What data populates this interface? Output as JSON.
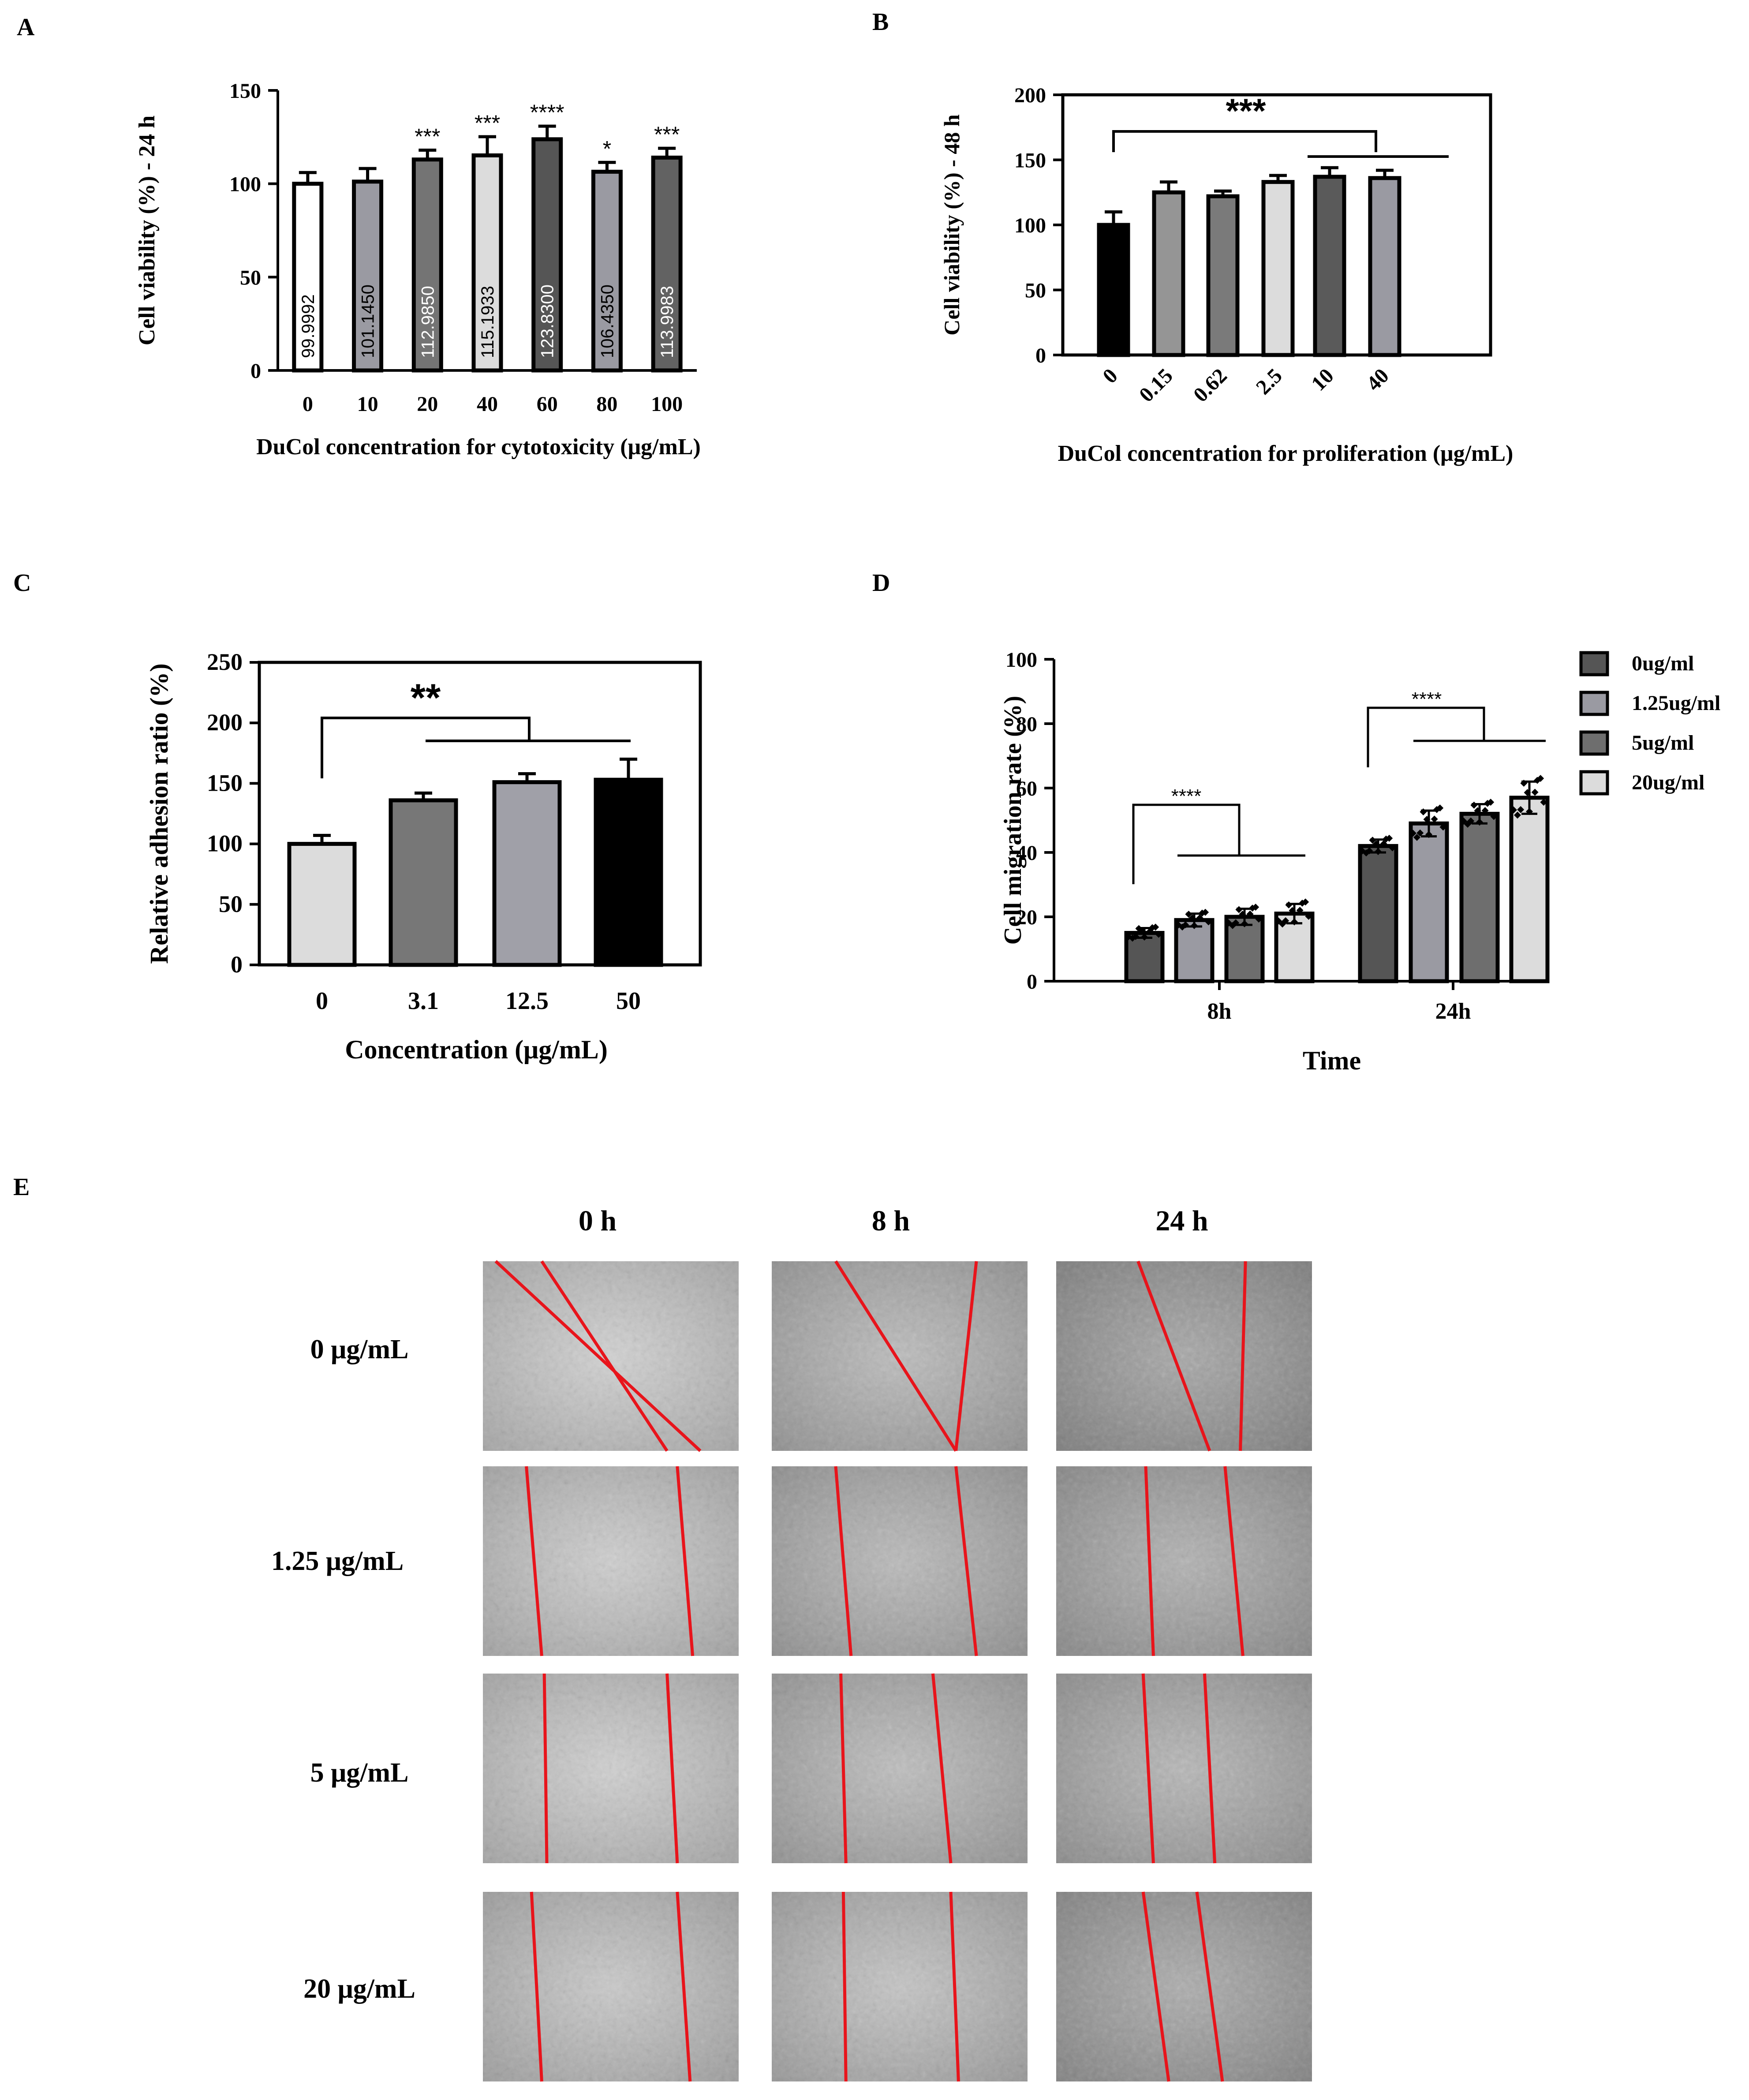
{
  "chart_data": [
    {
      "panel": "A",
      "type": "bar",
      "ylabel": "Cell viability (%) - 24 h",
      "xlabel": "DuCol concentration for cytotoxicity (μg/mL)",
      "categories": [
        "0",
        "10",
        "20",
        "40",
        "60",
        "80",
        "100"
      ],
      "values": [
        99.9992,
        101.145,
        112.985,
        115.1933,
        123.83,
        106.435,
        113.9983
      ],
      "value_labels": [
        "99.9992",
        "101.1450",
        "112.9850",
        "115.1933",
        "123.8300",
        "106.4350",
        "113.9983"
      ],
      "errors": [
        6,
        7,
        5,
        10,
        7,
        5,
        5
      ],
      "significance": [
        "",
        "",
        "***",
        "***",
        "****",
        "*",
        "***"
      ],
      "fills": [
        "#ffffff",
        "#9a9aa2",
        "#747474",
        "#dcdcdc",
        "#555555",
        "#9a9aa2",
        "#626262"
      ],
      "ylim": [
        0,
        150
      ],
      "yticks": [
        "0",
        "50",
        "100",
        "150"
      ]
    },
    {
      "panel": "B",
      "type": "bar",
      "ylabel": "Cell viability (%) - 48 h",
      "xlabel": "DuCol concentration for proliferation (μg/mL)",
      "categories": [
        "0",
        "0.15",
        "0.62",
        "2.5",
        "10",
        "40"
      ],
      "values": [
        100,
        125,
        122,
        133,
        137,
        136
      ],
      "errors": [
        10,
        8,
        4,
        5,
        7,
        6
      ],
      "fills": [
        "#000000",
        "#959595",
        "#7a7a7a",
        "#dcdcdc",
        "#5a5a5a",
        "#9a9aa2"
      ],
      "significance_bracket": "***",
      "ylim": [
        0,
        200
      ],
      "yticks": [
        "0",
        "50",
        "100",
        "150",
        "200"
      ]
    },
    {
      "panel": "C",
      "type": "bar",
      "ylabel": "Relative adhesion ratio (%)",
      "xlabel": "Concentration (μg/mL)",
      "categories": [
        "0",
        "3.1",
        "12.5",
        "50"
      ],
      "values": [
        100,
        136,
        151,
        153
      ],
      "errors": [
        7,
        6,
        7,
        17
      ],
      "fills": [
        "#dcdcdc",
        "#777777",
        "#a0a0a8",
        "#000000"
      ],
      "significance_bracket": "**",
      "ylim": [
        0,
        250
      ],
      "yticks": [
        "0",
        "50",
        "100",
        "150",
        "200",
        "250"
      ]
    },
    {
      "panel": "D",
      "type": "bar",
      "ylabel": "Cell migration rate (%)",
      "xlabel": "Time",
      "categories": [
        "8h",
        "24h"
      ],
      "series": [
        {
          "name": "0ug/ml",
          "values": [
            15,
            42
          ],
          "errors": [
            1.5,
            2
          ],
          "fill": "#555555"
        },
        {
          "name": "1.25ug/ml",
          "values": [
            19,
            49
          ],
          "errors": [
            2,
            4
          ],
          "fill": "#9a9aa2"
        },
        {
          "name": "5ug/ml",
          "values": [
            20,
            52
          ],
          "errors": [
            2.5,
            3
          ],
          "fill": "#6e6e6e"
        },
        {
          "name": "20ug/ml",
          "values": [
            21,
            57
          ],
          "errors": [
            3,
            5
          ],
          "fill": "#dcdcdc"
        }
      ],
      "significance_bracket": "****",
      "ylim": [
        0,
        100
      ],
      "yticks": [
        "0",
        "20",
        "40",
        "60",
        "80",
        "100"
      ],
      "legend": "right"
    }
  ],
  "panel_labels": {
    "a": "A",
    "b": "B",
    "c": "C",
    "d": "D",
    "e": "E"
  },
  "micrographs": {
    "columns": [
      "0 h",
      "8 h",
      "24 h"
    ],
    "rows": [
      "0 μg/mL",
      "1.25 μg/mL",
      "5 μg/mL",
      "20 μg/mL"
    ]
  },
  "colors": {
    "axis": "#000000",
    "scratch_line": "#e8141b",
    "micro_bg": "#b4b4b4"
  }
}
